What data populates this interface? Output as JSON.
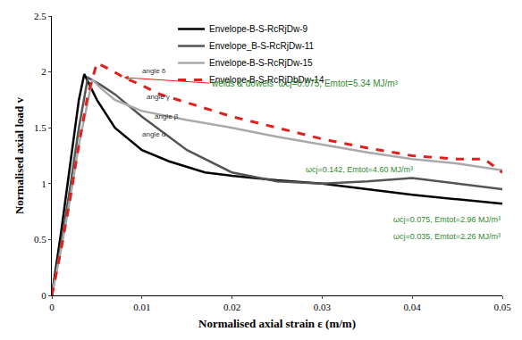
{
  "chart_data": {
    "type": "line",
    "x_label": "Normalised axial strain ε (m/m)",
    "y_label": "Normalised axial load v",
    "xlim": [
      0,
      0.05
    ],
    "xticks": [
      0,
      0.01,
      0.02,
      0.03,
      0.04,
      0.05
    ],
    "ylim": [
      0,
      2.5
    ],
    "yticks": [
      0,
      0.5,
      1,
      1.5,
      2,
      2.5
    ],
    "grid": false,
    "legend": "top",
    "series": [
      {
        "name": "Envelope-B-S-RcRjDw-9",
        "color": "#000000",
        "line_style": "solid",
        "x": [
          0,
          0.001,
          0.002,
          0.003,
          0.0036,
          0.005,
          0.007,
          0.01,
          0.013,
          0.017,
          0.02,
          0.025,
          0.03,
          0.035,
          0.04,
          0.045,
          0.05
        ],
        "values": [
          0,
          0.55,
          1.15,
          1.75,
          1.98,
          1.75,
          1.5,
          1.3,
          1.2,
          1.1,
          1.07,
          1.03,
          1.0,
          0.95,
          0.9,
          0.86,
          0.82
        ]
      },
      {
        "name": "Envelope_B-S-RcRjDw-11",
        "color": "#555555",
        "line_style": "solid",
        "x": [
          0,
          0.001,
          0.002,
          0.003,
          0.004,
          0.0055,
          0.007,
          0.01,
          0.015,
          0.02,
          0.025,
          0.03,
          0.035,
          0.04,
          0.045,
          0.05
        ],
        "values": [
          0,
          0.45,
          0.95,
          1.5,
          1.95,
          1.88,
          1.8,
          1.6,
          1.3,
          1.1,
          1.02,
          1.0,
          1.02,
          1.05,
          1.0,
          0.95
        ]
      },
      {
        "name": "Envelope-B-S-RcRjDw-15",
        "color": "#aaaaaa",
        "line_style": "solid",
        "x": [
          0,
          0.001,
          0.002,
          0.003,
          0.0045,
          0.0055,
          0.007,
          0.01,
          0.015,
          0.02,
          0.025,
          0.03,
          0.035,
          0.04,
          0.045,
          0.05
        ],
        "values": [
          0,
          0.4,
          0.85,
          1.35,
          1.93,
          1.85,
          1.75,
          1.65,
          1.57,
          1.5,
          1.42,
          1.35,
          1.28,
          1.22,
          1.18,
          1.12
        ]
      },
      {
        "name": "Envelope-B-S-RcRjDbDw-14",
        "color": "#e0201b",
        "line_style": "dash",
        "x": [
          0,
          0.001,
          0.002,
          0.003,
          0.004,
          0.005,
          0.0065,
          0.008,
          0.01,
          0.012,
          0.016,
          0.02,
          0.025,
          0.03,
          0.035,
          0.04,
          0.045,
          0.048,
          0.05
        ],
        "values": [
          0,
          0.4,
          0.85,
          1.35,
          1.8,
          2.08,
          2.02,
          1.95,
          1.88,
          1.8,
          1.7,
          1.6,
          1.5,
          1.4,
          1.32,
          1.25,
          1.22,
          1.22,
          1.1
        ]
      }
    ],
    "annotations": [
      {
        "text": "welds & dowels  ωcj=0.075, Emtot=5.34 MJ/m³"
      },
      {
        "text": "ωcj=0.142, Emtot=4.60 MJ/m³"
      },
      {
        "text": "ωcj=0.075, Emtot=2.96 MJ/m³"
      },
      {
        "text": "ωcj=0.035, Emtot=2.26 MJ/m³"
      },
      {
        "text": "angle δ"
      },
      {
        "text": "angle γ"
      },
      {
        "text": "angle β"
      },
      {
        "text": "angle α"
      }
    ]
  }
}
